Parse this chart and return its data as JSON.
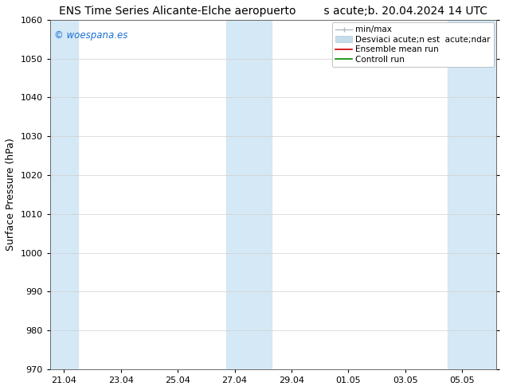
{
  "title": "ENS Time Series Alicante-Elche aeropuerto        s acute;b. 20.04.2024 14 UTC",
  "ylabel": "Surface Pressure (hPa)",
  "ylim": [
    970,
    1060
  ],
  "yticks": [
    970,
    980,
    990,
    1000,
    1010,
    1020,
    1030,
    1040,
    1050,
    1060
  ],
  "xtick_labels": [
    "21.04",
    "23.04",
    "25.04",
    "27.04",
    "29.04",
    "01.05",
    "03.05",
    "05.05"
  ],
  "xtick_positions": [
    0,
    2,
    4,
    6,
    8,
    10,
    12,
    14
  ],
  "xlim": [
    -0.5,
    15.2
  ],
  "shaded_bands": [
    {
      "x_start": -0.5,
      "x_end": 0.5,
      "color": "#d4e8f5"
    },
    {
      "x_start": 5.7,
      "x_end": 7.3,
      "color": "#d4e8f5"
    },
    {
      "x_start": 13.5,
      "x_end": 15.2,
      "color": "#d4e8f5"
    }
  ],
  "watermark_text": "© woespana.es",
  "watermark_color": "#1a6fd4",
  "background_color": "#ffffff",
  "grid_color": "#d0d0d0",
  "tick_label_fontsize": 8,
  "axis_label_fontsize": 9,
  "title_fontsize": 10,
  "legend_fontsize": 7.5,
  "legend_labels": [
    "min/max",
    "Desviaci acute;n est  acute;ndar",
    "Ensemble mean run",
    "Controll run"
  ],
  "legend_colors": [
    "#b0c0cc",
    "#c5dcea",
    "#cc0000",
    "#008800"
  ]
}
